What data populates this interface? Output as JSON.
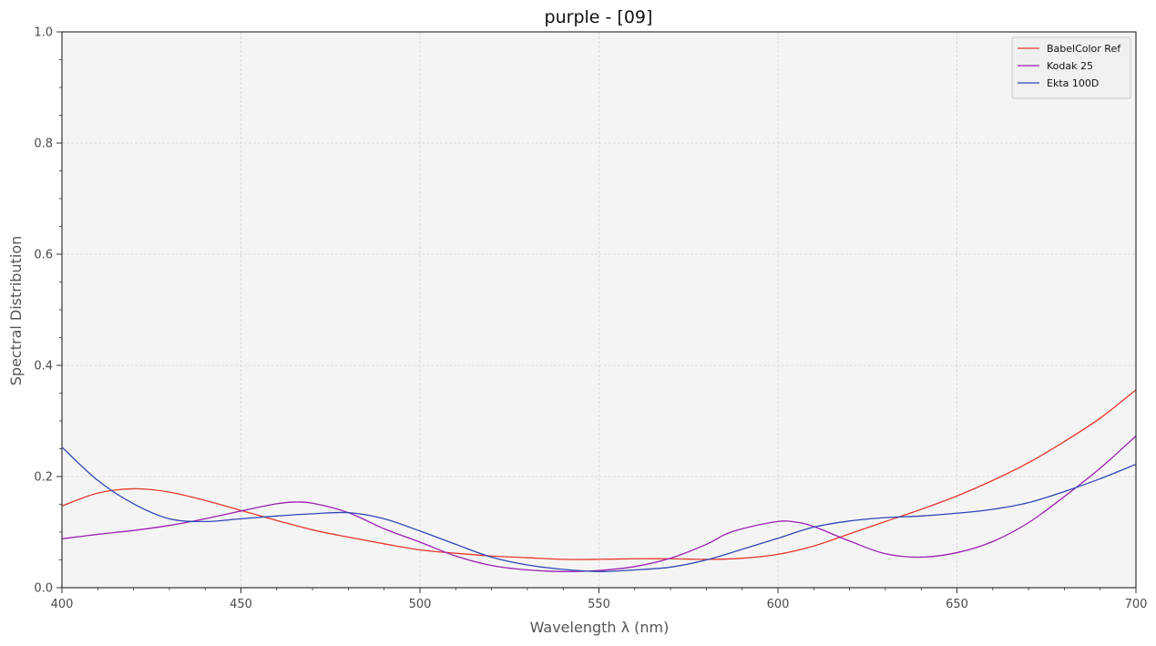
{
  "chart_data": {
    "type": "line",
    "title": "purple - [09]",
    "xlabel": "Wavelength λ (nm)",
    "ylabel": "Spectral Distribution",
    "xlim": [
      400,
      700
    ],
    "ylim": [
      0,
      1
    ],
    "xticks": [
      "400",
      "450",
      "500",
      "550",
      "600",
      "650",
      "700"
    ],
    "yticks": [
      "0.0",
      "0.2",
      "0.4",
      "0.6",
      "0.8",
      "1.0"
    ],
    "grid": true,
    "legend_position": "top-right",
    "background_color": "#f4f4f4",
    "series": [
      {
        "name": "BabelColor Ref",
        "color": "#e8372a",
        "x": [
          400,
          410,
          420,
          430,
          440,
          450,
          460,
          470,
          480,
          490,
          500,
          510,
          520,
          530,
          540,
          550,
          560,
          570,
          580,
          590,
          600,
          610,
          620,
          630,
          640,
          650,
          660,
          670,
          680,
          690,
          700
        ],
        "y": [
          0.147,
          0.17,
          0.178,
          0.172,
          0.157,
          0.139,
          0.121,
          0.104,
          0.091,
          0.079,
          0.068,
          0.062,
          0.057,
          0.054,
          0.051,
          0.051,
          0.052,
          0.052,
          0.051,
          0.053,
          0.06,
          0.075,
          0.097,
          0.119,
          0.141,
          0.165,
          0.193,
          0.225,
          0.263,
          0.305,
          0.356
        ]
      },
      {
        "name": "Kodak 25",
        "color": "#9a1fb0",
        "x": [
          400,
          410,
          420,
          430,
          440,
          450,
          460,
          465,
          470,
          480,
          490,
          500,
          510,
          520,
          530,
          540,
          550,
          560,
          570,
          580,
          585,
          590,
          600,
          605,
          610,
          620,
          630,
          640,
          650,
          660,
          670,
          680,
          690,
          700
        ],
        "y": [
          0.088,
          0.096,
          0.103,
          0.112,
          0.124,
          0.138,
          0.151,
          0.154,
          0.152,
          0.135,
          0.106,
          0.082,
          0.057,
          0.04,
          0.032,
          0.029,
          0.031,
          0.038,
          0.053,
          0.078,
          0.095,
          0.106,
          0.119,
          0.118,
          0.11,
          0.084,
          0.061,
          0.055,
          0.063,
          0.083,
          0.117,
          0.164,
          0.215,
          0.273
        ]
      },
      {
        "name": "Ekta 100D",
        "color": "#2e47b5",
        "x": [
          400,
          410,
          420,
          430,
          440,
          450,
          460,
          470,
          480,
          490,
          500,
          510,
          520,
          530,
          540,
          550,
          560,
          570,
          580,
          590,
          600,
          610,
          620,
          630,
          640,
          650,
          660,
          670,
          680,
          690,
          700
        ],
        "y": [
          0.253,
          0.193,
          0.151,
          0.124,
          0.119,
          0.124,
          0.129,
          0.133,
          0.135,
          0.124,
          0.102,
          0.078,
          0.055,
          0.041,
          0.033,
          0.029,
          0.032,
          0.037,
          0.05,
          0.069,
          0.089,
          0.109,
          0.12,
          0.126,
          0.129,
          0.134,
          0.141,
          0.153,
          0.173,
          0.196,
          0.222
        ]
      }
    ]
  }
}
